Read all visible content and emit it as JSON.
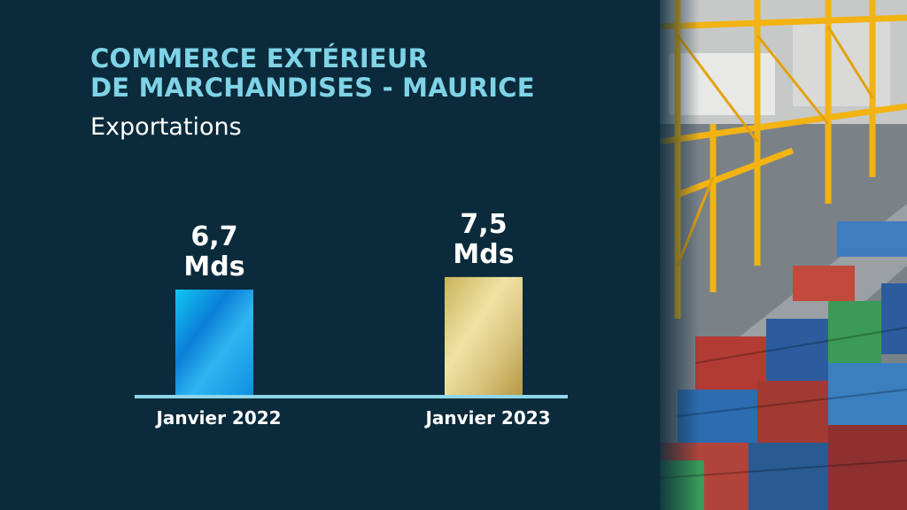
{
  "title": {
    "line1": "COMMERCE EXTÉRIEUR",
    "line2": "DE MARCHANDISES - MAURICE"
  },
  "subtitle": "Exportations",
  "colors": {
    "background": "#0b2a3b",
    "title": "#7fd3e6",
    "bar_2022": "#1aa6e8",
    "bar_2023": "#d9c679",
    "axis": "#8fd6ea"
  },
  "chart_data": {
    "type": "bar",
    "categories": [
      "Janvier 2022",
      "Janvier 2023"
    ],
    "values": [
      6.7,
      7.5
    ],
    "value_labels": [
      [
        "6,7",
        "Mds"
      ],
      [
        "7,5",
        "Mds"
      ]
    ],
    "title": "COMMERCE EXTÉRIEUR DE MARCHANDISES - MAURICE",
    "subtitle": "Exportations",
    "xlabel": "",
    "ylabel": "",
    "ylim": [
      0,
      20
    ],
    "grid": false
  },
  "photo": {
    "icon": "port-containers-cranes-photo"
  }
}
